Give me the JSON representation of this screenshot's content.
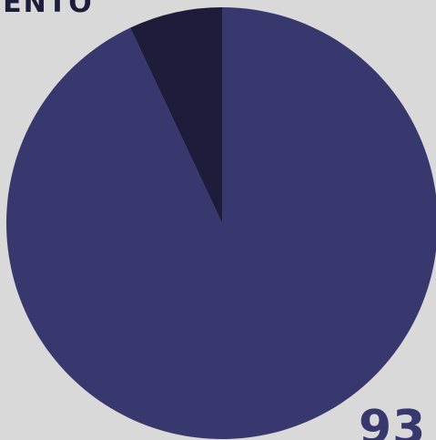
{
  "chart_data": {
    "type": "pie",
    "title": "IENTO",
    "slices": [
      {
        "value": 93,
        "color": "#38386e"
      },
      {
        "value": 7,
        "color": "#1d1c3b"
      }
    ],
    "labels": [
      "93"
    ]
  }
}
